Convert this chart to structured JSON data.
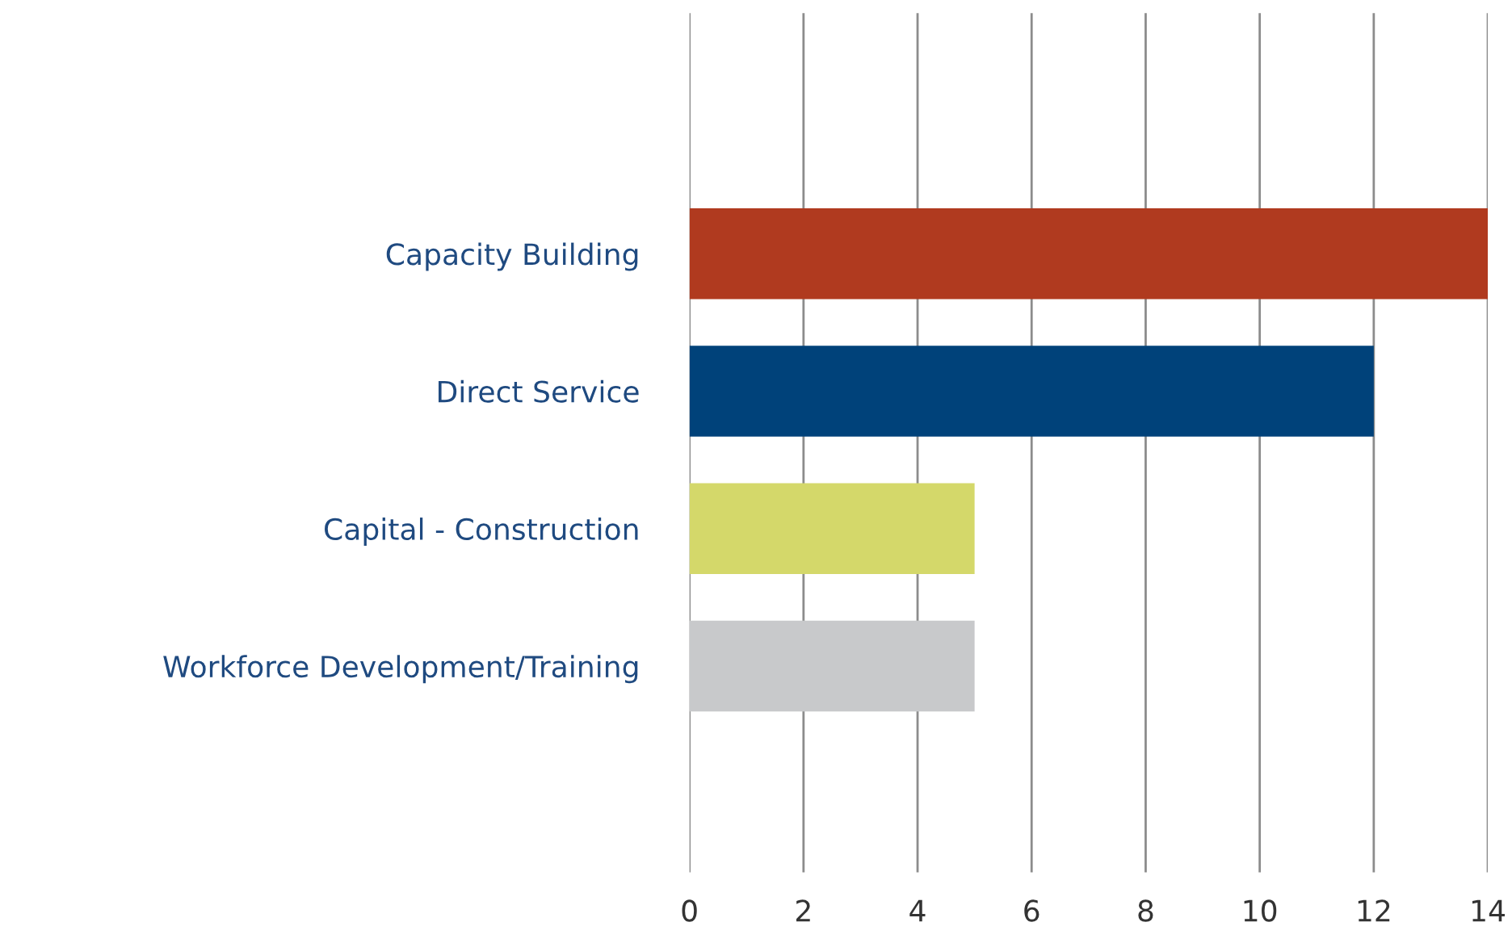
{
  "chart_data": {
    "type": "bar",
    "orientation": "horizontal",
    "categories": [
      "Capacity Building",
      "Direct Service",
      "Capital - Construction",
      "Workforce Development/Training"
    ],
    "values": [
      14,
      12,
      5,
      5
    ],
    "colors": [
      "#b03a1f",
      "#00427a",
      "#d4d86a",
      "#c8c9cb"
    ],
    "xlim": [
      0,
      14
    ],
    "xticks": [
      0,
      2,
      4,
      6,
      8,
      10,
      12,
      14
    ],
    "grid": "x"
  }
}
